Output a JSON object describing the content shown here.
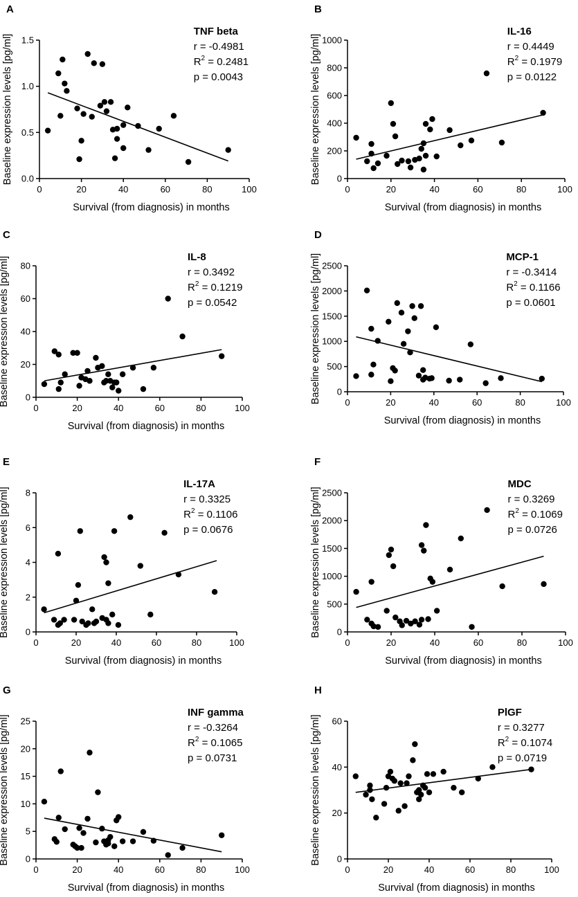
{
  "figure": {
    "xlabel": "Survival (from diagnosis) in months",
    "ylabel": "Baseline expression levels [pg/ml]",
    "stat_r_prefix": "r = ",
    "stat_r2_prefix": "R",
    "stat_r2_sup": "2",
    "stat_r2_eq": " = ",
    "stat_p_prefix": "p = "
  },
  "chart_data": [
    {
      "panel": "A",
      "type": "scatter",
      "title": "TNF beta",
      "r": "-0.4981",
      "r2": "0.2481",
      "p": "0.0043",
      "xlabel": "Survival (from diagnosis) in months",
      "ylabel": "Baseline expression levels [pg/ml]",
      "xlim": [
        0,
        100
      ],
      "ylim": [
        0,
        1.5
      ],
      "xticks": [
        0,
        20,
        40,
        60,
        80,
        100
      ],
      "yticks": [
        0.0,
        0.5,
        1.0,
        1.5
      ],
      "ytick_labels": [
        "0.0",
        "0.5",
        "1.0",
        "1.5"
      ],
      "fit": [
        [
          4,
          0.93
        ],
        [
          90,
          0.19
        ]
      ],
      "points": [
        [
          4,
          0.52
        ],
        [
          9,
          1.14
        ],
        [
          10,
          0.68
        ],
        [
          11,
          1.29
        ],
        [
          12,
          1.03
        ],
        [
          13,
          0.95
        ],
        [
          18,
          0.76
        ],
        [
          19,
          0.21
        ],
        [
          20,
          0.41
        ],
        [
          21,
          0.7
        ],
        [
          23,
          1.35
        ],
        [
          25,
          0.67
        ],
        [
          26,
          1.25
        ],
        [
          29,
          0.79
        ],
        [
          30,
          1.24
        ],
        [
          31,
          0.83
        ],
        [
          32,
          0.73
        ],
        [
          34,
          0.83
        ],
        [
          35,
          0.53
        ],
        [
          36,
          0.22
        ],
        [
          37,
          0.43
        ],
        [
          37,
          0.54
        ],
        [
          40,
          0.58
        ],
        [
          40,
          0.33
        ],
        [
          42,
          0.77
        ],
        [
          47,
          0.57
        ],
        [
          52,
          0.31
        ],
        [
          57,
          0.54
        ],
        [
          64,
          0.68
        ],
        [
          71,
          0.18
        ],
        [
          90,
          0.31
        ]
      ]
    },
    {
      "panel": "B",
      "type": "scatter",
      "title": "IL-16",
      "r": "0.4449",
      "r2": "0.1979",
      "p": "0.0122",
      "xlabel": "Survival (from diagnosis) in months",
      "ylabel": "Baseline expression levels [pg/ml]",
      "xlim": [
        0,
        100
      ],
      "ylim": [
        0,
        1000
      ],
      "xticks": [
        0,
        20,
        40,
        60,
        80,
        100
      ],
      "yticks": [
        0,
        200,
        400,
        600,
        800,
        1000
      ],
      "ytick_labels": [
        "0",
        "200",
        "400",
        "600",
        "800",
        "1000"
      ],
      "fit": [
        [
          4,
          140
        ],
        [
          90,
          460
        ]
      ],
      "points": [
        [
          4,
          295
        ],
        [
          9,
          125
        ],
        [
          11,
          250
        ],
        [
          11,
          180
        ],
        [
          12,
          75
        ],
        [
          14,
          110
        ],
        [
          18,
          165
        ],
        [
          20,
          545
        ],
        [
          21,
          395
        ],
        [
          22,
          305
        ],
        [
          23,
          105
        ],
        [
          25,
          130
        ],
        [
          28,
          125
        ],
        [
          29,
          80
        ],
        [
          31,
          135
        ],
        [
          33,
          145
        ],
        [
          34,
          215
        ],
        [
          35,
          255
        ],
        [
          35,
          65
        ],
        [
          36,
          165
        ],
        [
          36,
          395
        ],
        [
          38,
          355
        ],
        [
          39,
          430
        ],
        [
          41,
          160
        ],
        [
          47,
          350
        ],
        [
          52,
          240
        ],
        [
          57,
          275
        ],
        [
          64,
          760
        ],
        [
          71,
          260
        ],
        [
          90,
          475
        ]
      ]
    },
    {
      "panel": "C",
      "type": "scatter",
      "title": "IL-8",
      "r": "0.3492",
      "r2": "0.1219",
      "p": "0.0542",
      "xlabel": "Survival (from diagnosis) in months",
      "ylabel": "Baseline expression levels [pg/ml]",
      "xlim": [
        0,
        100
      ],
      "ylim": [
        0,
        80
      ],
      "xticks": [
        0,
        20,
        40,
        60,
        80,
        100
      ],
      "yticks": [
        0,
        20,
        40,
        60,
        80
      ],
      "ytick_labels": [
        "0",
        "20",
        "40",
        "60",
        "80"
      ],
      "fit": [
        [
          4,
          10
        ],
        [
          90,
          29
        ]
      ],
      "points": [
        [
          4,
          8
        ],
        [
          9,
          28
        ],
        [
          11,
          26
        ],
        [
          11,
          5
        ],
        [
          12,
          9
        ],
        [
          14,
          14
        ],
        [
          18,
          27
        ],
        [
          20,
          27
        ],
        [
          21,
          7
        ],
        [
          22,
          12
        ],
        [
          24,
          11
        ],
        [
          25,
          16
        ],
        [
          26,
          10
        ],
        [
          29,
          24
        ],
        [
          30,
          18
        ],
        [
          32,
          19
        ],
        [
          33,
          9
        ],
        [
          34,
          10
        ],
        [
          35,
          14
        ],
        [
          36,
          10
        ],
        [
          37,
          6
        ],
        [
          38,
          9
        ],
        [
          39,
          9
        ],
        [
          40,
          4
        ],
        [
          42,
          14
        ],
        [
          47,
          18
        ],
        [
          52,
          5
        ],
        [
          57,
          18
        ],
        [
          64,
          60
        ],
        [
          71,
          37
        ],
        [
          90,
          25
        ]
      ]
    },
    {
      "panel": "D",
      "type": "scatter",
      "title": "MCP-1",
      "r": "-0.3414",
      "r2": "0.1166",
      "p": "0.0601",
      "xlabel": "Survival (from diagnosis) in months",
      "ylabel": "Baseline expression levels [pg/ml]",
      "xlim": [
        0,
        100
      ],
      "ylim": [
        0,
        2500
      ],
      "xticks": [
        0,
        20,
        40,
        60,
        80,
        100
      ],
      "yticks": [
        0,
        500,
        1000,
        1500,
        2000,
        2500
      ],
      "ytick_labels": [
        "0",
        "500",
        "1000",
        "1500",
        "2000",
        "2500"
      ],
      "fit": [
        [
          4,
          1090
        ],
        [
          90,
          200
        ]
      ],
      "points": [
        [
          4,
          310
        ],
        [
          9,
          2010
        ],
        [
          11,
          1250
        ],
        [
          11,
          340
        ],
        [
          12,
          540
        ],
        [
          14,
          1010
        ],
        [
          19,
          1390
        ],
        [
          20,
          210
        ],
        [
          21,
          470
        ],
        [
          22,
          420
        ],
        [
          23,
          1760
        ],
        [
          25,
          1570
        ],
        [
          26,
          950
        ],
        [
          28,
          1200
        ],
        [
          29,
          780
        ],
        [
          30,
          1700
        ],
        [
          31,
          1460
        ],
        [
          33,
          320
        ],
        [
          34,
          1700
        ],
        [
          35,
          240
        ],
        [
          35,
          430
        ],
        [
          36,
          280
        ],
        [
          38,
          260
        ],
        [
          39,
          270
        ],
        [
          41,
          1280
        ],
        [
          47,
          220
        ],
        [
          52,
          240
        ],
        [
          57,
          940
        ],
        [
          64,
          170
        ],
        [
          71,
          270
        ],
        [
          90,
          260
        ]
      ]
    },
    {
      "panel": "E",
      "type": "scatter",
      "title": "IL-17A",
      "r": "0.3325",
      "r2": "0.1106",
      "p": "0.0676",
      "xlabel": "Survival (from diagnosis) in months",
      "ylabel": "Baseline expression levels [pg/ml]",
      "xlim": [
        0,
        100
      ],
      "ylim": [
        0,
        8
      ],
      "xticks": [
        0,
        20,
        40,
        60,
        80,
        100
      ],
      "yticks": [
        0,
        2,
        4,
        6,
        8
      ],
      "ytick_labels": [
        "0",
        "2",
        "4",
        "6",
        "8"
      ],
      "fit": [
        [
          4,
          1.1
        ],
        [
          90,
          4.1
        ]
      ],
      "points": [
        [
          4,
          1.3
        ],
        [
          9,
          0.7
        ],
        [
          11,
          4.5
        ],
        [
          11,
          0.4
        ],
        [
          12,
          0.5
        ],
        [
          14,
          0.7
        ],
        [
          19,
          0.7
        ],
        [
          20,
          1.8
        ],
        [
          21,
          2.7
        ],
        [
          22,
          5.8
        ],
        [
          23,
          0.6
        ],
        [
          25,
          0.4
        ],
        [
          26,
          0.5
        ],
        [
          28,
          1.3
        ],
        [
          29,
          0.5
        ],
        [
          30,
          0.6
        ],
        [
          33,
          0.8
        ],
        [
          34,
          4.3
        ],
        [
          35,
          0.7
        ],
        [
          35,
          4.0
        ],
        [
          36,
          2.8
        ],
        [
          36,
          0.5
        ],
        [
          38,
          1.0
        ],
        [
          39,
          5.8
        ],
        [
          41,
          0.4
        ],
        [
          47,
          6.6
        ],
        [
          52,
          3.8
        ],
        [
          57,
          1.0
        ],
        [
          64,
          5.7
        ],
        [
          71,
          3.3
        ],
        [
          89,
          2.3
        ]
      ]
    },
    {
      "panel": "F",
      "type": "scatter",
      "title": "MDC",
      "r": "0.3269",
      "r2": "0.1069",
      "p": "0.0726",
      "xlabel": "Survival (from diagnosis) in months",
      "ylabel": "Baseline expression levels [pg/ml]",
      "xlim": [
        0,
        100
      ],
      "ylim": [
        0,
        2500
      ],
      "xticks": [
        0,
        20,
        40,
        60,
        80,
        100
      ],
      "yticks": [
        0,
        500,
        1000,
        1500,
        2000,
        2500
      ],
      "ytick_labels": [
        "0",
        "500",
        "1000",
        "1500",
        "2000",
        "2500"
      ],
      "fit": [
        [
          4,
          440
        ],
        [
          90,
          1360
        ]
      ],
      "points": [
        [
          4,
          720
        ],
        [
          9,
          220
        ],
        [
          11,
          900
        ],
        [
          11,
          150
        ],
        [
          12,
          100
        ],
        [
          14,
          90
        ],
        [
          18,
          380
        ],
        [
          19,
          1380
        ],
        [
          20,
          1480
        ],
        [
          21,
          1180
        ],
        [
          22,
          260
        ],
        [
          24,
          190
        ],
        [
          25,
          120
        ],
        [
          27,
          200
        ],
        [
          29,
          150
        ],
        [
          31,
          190
        ],
        [
          33,
          130
        ],
        [
          34,
          1560
        ],
        [
          34,
          220
        ],
        [
          35,
          1460
        ],
        [
          36,
          1920
        ],
        [
          37,
          230
        ],
        [
          38,
          960
        ],
        [
          39,
          900
        ],
        [
          41,
          380
        ],
        [
          47,
          1120
        ],
        [
          52,
          1680
        ],
        [
          57,
          90
        ],
        [
          64,
          2190
        ],
        [
          71,
          820
        ],
        [
          90,
          860
        ]
      ]
    },
    {
      "panel": "G",
      "type": "scatter",
      "title": "INF gamma",
      "r": "-0.3264",
      "r2": "0.1065",
      "p": "0.0731",
      "xlabel": "Survival (from diagnosis) in months",
      "ylabel": "Baseline expression levels [pg/ml]",
      "xlim": [
        0,
        100
      ],
      "ylim": [
        0,
        25
      ],
      "xticks": [
        0,
        20,
        40,
        60,
        80,
        100
      ],
      "yticks": [
        0,
        5,
        10,
        15,
        20,
        25
      ],
      "ytick_labels": [
        "0",
        "5",
        "10",
        "15",
        "20",
        "25"
      ],
      "fit": [
        [
          4,
          7.4
        ],
        [
          90,
          1.3
        ]
      ],
      "points": [
        [
          4,
          10.4
        ],
        [
          9,
          3.6
        ],
        [
          10,
          3.1
        ],
        [
          11,
          7.5
        ],
        [
          12,
          15.9
        ],
        [
          14,
          5.4
        ],
        [
          18,
          2.6
        ],
        [
          19,
          2.3
        ],
        [
          20,
          2.0
        ],
        [
          21,
          5.6
        ],
        [
          22,
          2.0
        ],
        [
          23,
          4.7
        ],
        [
          25,
          7.3
        ],
        [
          26,
          19.3
        ],
        [
          29,
          3.0
        ],
        [
          30,
          12.1
        ],
        [
          32,
          5.5
        ],
        [
          33,
          3.2
        ],
        [
          34,
          2.6
        ],
        [
          35,
          2.8
        ],
        [
          35,
          3.4
        ],
        [
          36,
          4.0
        ],
        [
          38,
          2.3
        ],
        [
          39,
          7.0
        ],
        [
          40,
          7.6
        ],
        [
          42,
          3.2
        ],
        [
          47,
          3.2
        ],
        [
          52,
          4.9
        ],
        [
          57,
          3.3
        ],
        [
          64,
          0.7
        ],
        [
          71,
          2.0
        ],
        [
          90,
          4.3
        ]
      ]
    },
    {
      "panel": "H",
      "type": "scatter",
      "title": "PlGF",
      "r": "0.3277",
      "r2": "0.1074",
      "p": "0.0719",
      "xlabel": "Survival (from diagnosis) in months",
      "ylabel": "Baseline expression levels [pg/ml]",
      "xlim": [
        0,
        100
      ],
      "ylim": [
        0,
        60
      ],
      "xticks": [
        0,
        20,
        40,
        60,
        80,
        100
      ],
      "yticks": [
        0,
        20,
        40,
        60
      ],
      "ytick_labels": [
        "0",
        "20",
        "40",
        "60"
      ],
      "fit": [
        [
          4,
          29
        ],
        [
          90,
          39
        ]
      ],
      "points": [
        [
          4,
          36
        ],
        [
          9,
          28
        ],
        [
          11,
          30
        ],
        [
          11,
          32
        ],
        [
          12,
          26
        ],
        [
          14,
          18
        ],
        [
          18,
          24
        ],
        [
          19,
          31
        ],
        [
          20,
          36
        ],
        [
          21,
          38
        ],
        [
          22,
          35
        ],
        [
          23,
          34
        ],
        [
          25,
          21
        ],
        [
          26,
          33
        ],
        [
          28,
          23
        ],
        [
          29,
          33
        ],
        [
          30,
          36
        ],
        [
          32,
          43
        ],
        [
          33,
          50
        ],
        [
          34,
          29
        ],
        [
          35,
          30
        ],
        [
          35,
          26
        ],
        [
          36,
          28
        ],
        [
          37,
          32
        ],
        [
          38,
          31
        ],
        [
          39,
          37
        ],
        [
          40,
          29
        ],
        [
          42,
          37
        ],
        [
          47,
          38
        ],
        [
          52,
          31
        ],
        [
          56,
          29
        ],
        [
          64,
          35
        ],
        [
          71,
          40
        ],
        [
          90,
          39
        ]
      ]
    }
  ]
}
